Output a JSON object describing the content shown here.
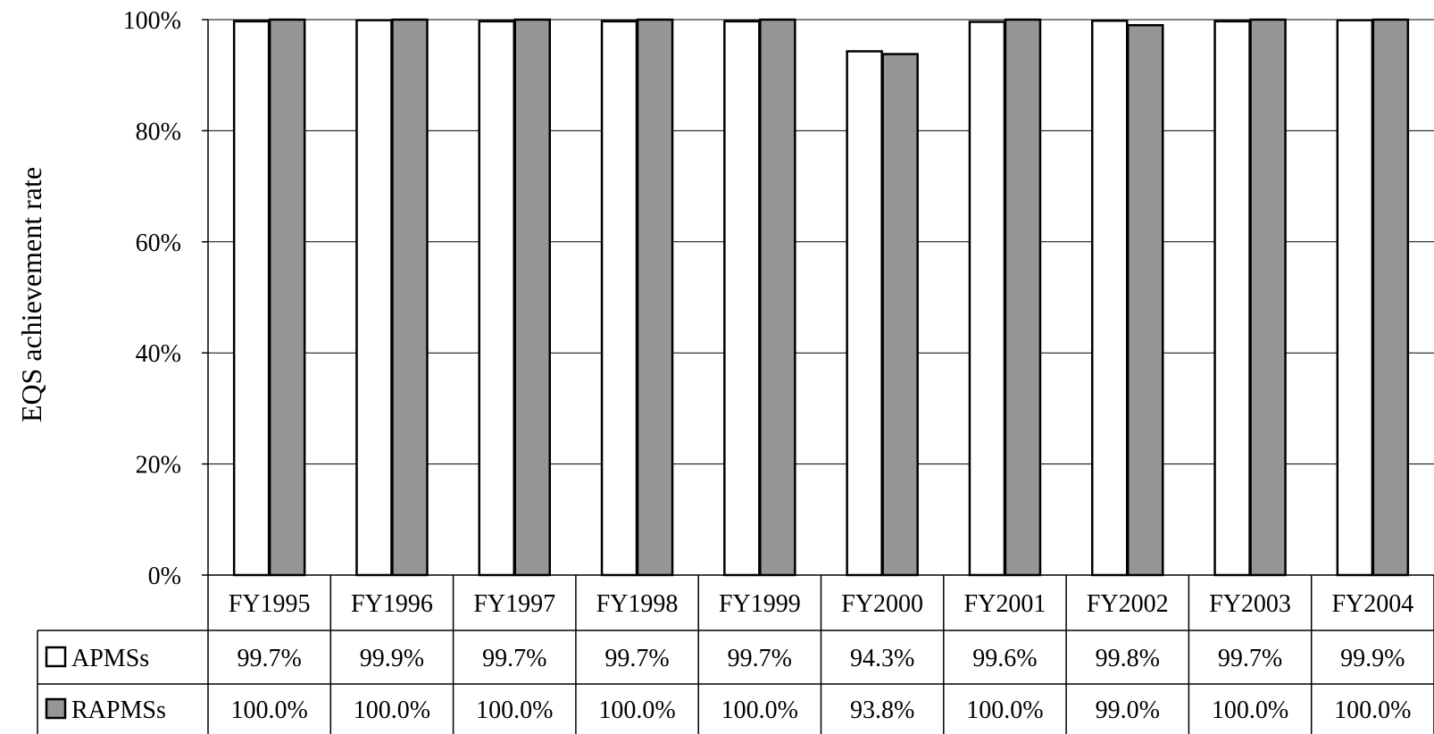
{
  "chart_data": {
    "type": "bar",
    "ylabel": "EQS achievement rate",
    "xlabel": "",
    "ylim": [
      0,
      100
    ],
    "yticks": [
      "0%",
      "20%",
      "40%",
      "60%",
      "80%",
      "100%"
    ],
    "grid": true,
    "categories": [
      "FY1995",
      "FY1996",
      "FY1997",
      "FY1998",
      "FY1999",
      "FY2000",
      "FY2001",
      "FY2002",
      "FY2003",
      "FY2004"
    ],
    "series": [
      {
        "name": "APMSs",
        "color": "#ffffff",
        "values": [
          99.7,
          99.9,
          99.7,
          99.7,
          99.7,
          94.3,
          99.6,
          99.8,
          99.7,
          99.9
        ],
        "labels": [
          "99.7%",
          "99.9%",
          "99.7%",
          "99.7%",
          "99.7%",
          "94.3%",
          "99.6%",
          "99.8%",
          "99.7%",
          "99.9%"
        ]
      },
      {
        "name": "RAPMSs",
        "color": "#969696",
        "values": [
          100.0,
          100.0,
          100.0,
          100.0,
          100.0,
          93.8,
          100.0,
          99.0,
          100.0,
          100.0
        ],
        "labels": [
          "100.0%",
          "100.0%",
          "100.0%",
          "100.0%",
          "100.0%",
          "93.8%",
          "100.0%",
          "99.0%",
          "100.0%",
          "100.0%"
        ]
      }
    ],
    "legend": "data table rows"
  }
}
